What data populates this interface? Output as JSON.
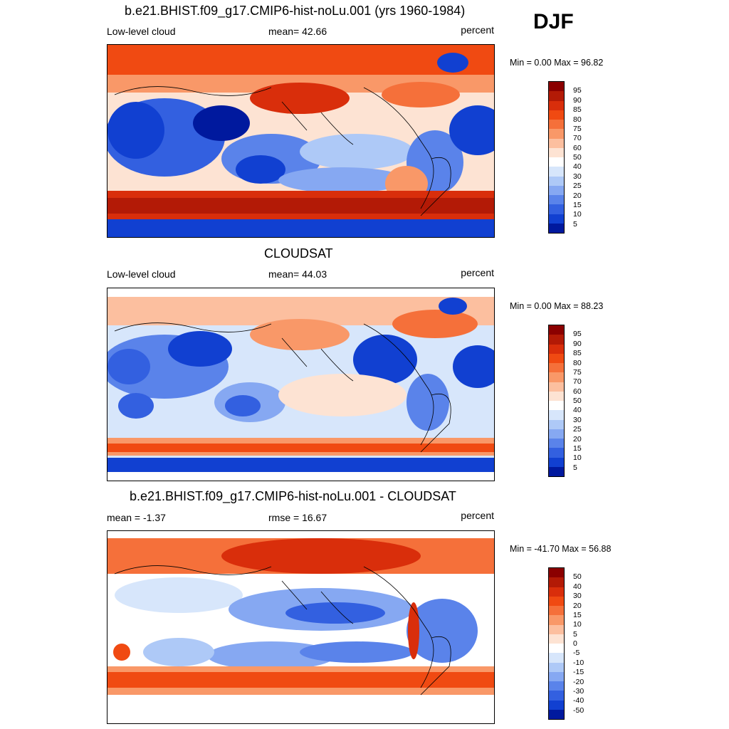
{
  "season": "DJF",
  "panels": [
    {
      "title": "b.e21.BHIST.f09_g17.CMIP6-hist-noLu.001 (yrs 1960-1984)",
      "left_label": "Low-level cloud",
      "center_label": "mean=  42.66",
      "units": "percent",
      "minmax": "Min =   0.00 Max =  96.82"
    },
    {
      "title": "CLOUDSAT",
      "left_label": "Low-level cloud",
      "center_label": "mean=  44.03",
      "units": "percent",
      "minmax": "Min =   0.00 Max =  88.23"
    },
    {
      "title": "b.e21.BHIST.f09_g17.CMIP6-hist-noLu.001 - CLOUDSAT",
      "left_label": "mean =  -1.37",
      "center_label": "rmse =  16.67",
      "units": "percent",
      "minmax": "Min = -41.70 Max =  56.88"
    }
  ],
  "colorbars": {
    "absolute": {
      "labels": [
        "95",
        "90",
        "85",
        "80",
        "75",
        "70",
        "60",
        "50",
        "40",
        "30",
        "25",
        "20",
        "15",
        "10",
        "5"
      ],
      "colors": [
        "#8b0000",
        "#b31a06",
        "#d92e0b",
        "#f04a12",
        "#f5703a",
        "#f99868",
        "#fcbf9f",
        "#fde3d3",
        "#ffffff",
        "#d7e6fb",
        "#aec9f7",
        "#86a8f2",
        "#5a83ea",
        "#3360e0",
        "#1140d1",
        "#00199e"
      ]
    },
    "difference": {
      "labels": [
        "50",
        "40",
        "30",
        "20",
        "15",
        "10",
        "5",
        "0",
        "-5",
        "-10",
        "-15",
        "-20",
        "-30",
        "-40",
        "-50"
      ],
      "colors": [
        "#8b0000",
        "#b31a06",
        "#d92e0b",
        "#f04a12",
        "#f5703a",
        "#f99868",
        "#fcbf9f",
        "#fde3d3",
        "#ffffff",
        "#d7e6fb",
        "#aec9f7",
        "#86a8f2",
        "#5a83ea",
        "#3360e0",
        "#1140d1",
        "#00199e"
      ]
    }
  }
}
